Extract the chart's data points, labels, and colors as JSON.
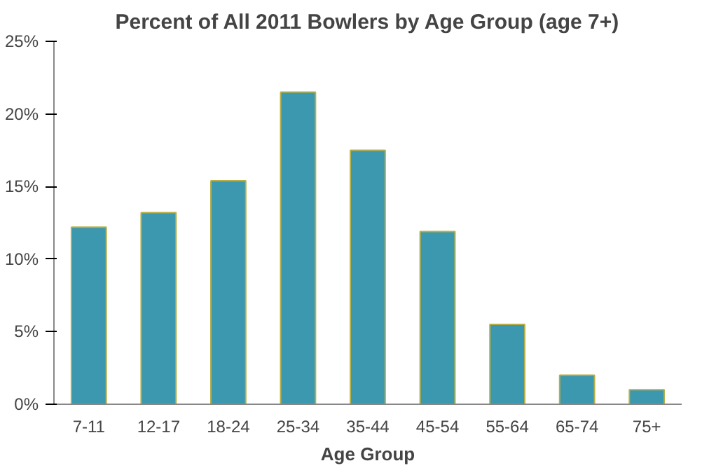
{
  "chart_data": {
    "type": "bar",
    "title": "Percent of All 2011 Bowlers by Age Group (age 7+)",
    "xlabel": "Age Group",
    "categories": [
      "7-11",
      "12-17",
      "18-24",
      "25-34",
      "35-44",
      "45-54",
      "55-64",
      "65-74",
      "75+"
    ],
    "values": [
      12.2,
      13.2,
      15.4,
      21.5,
      17.5,
      11.9,
      5.5,
      2.0,
      1.0
    ],
    "color": "#3b98ae",
    "ylim": [
      0,
      25
    ],
    "yticks": [
      {
        "value": 0,
        "label": "0%"
      },
      {
        "value": 5,
        "label": "5%"
      },
      {
        "value": 10,
        "label": "10%"
      },
      {
        "value": 15,
        "label": "15%"
      },
      {
        "value": 20,
        "label": "20%"
      },
      {
        "value": 25,
        "label": "25%"
      }
    ],
    "grid": false
  }
}
